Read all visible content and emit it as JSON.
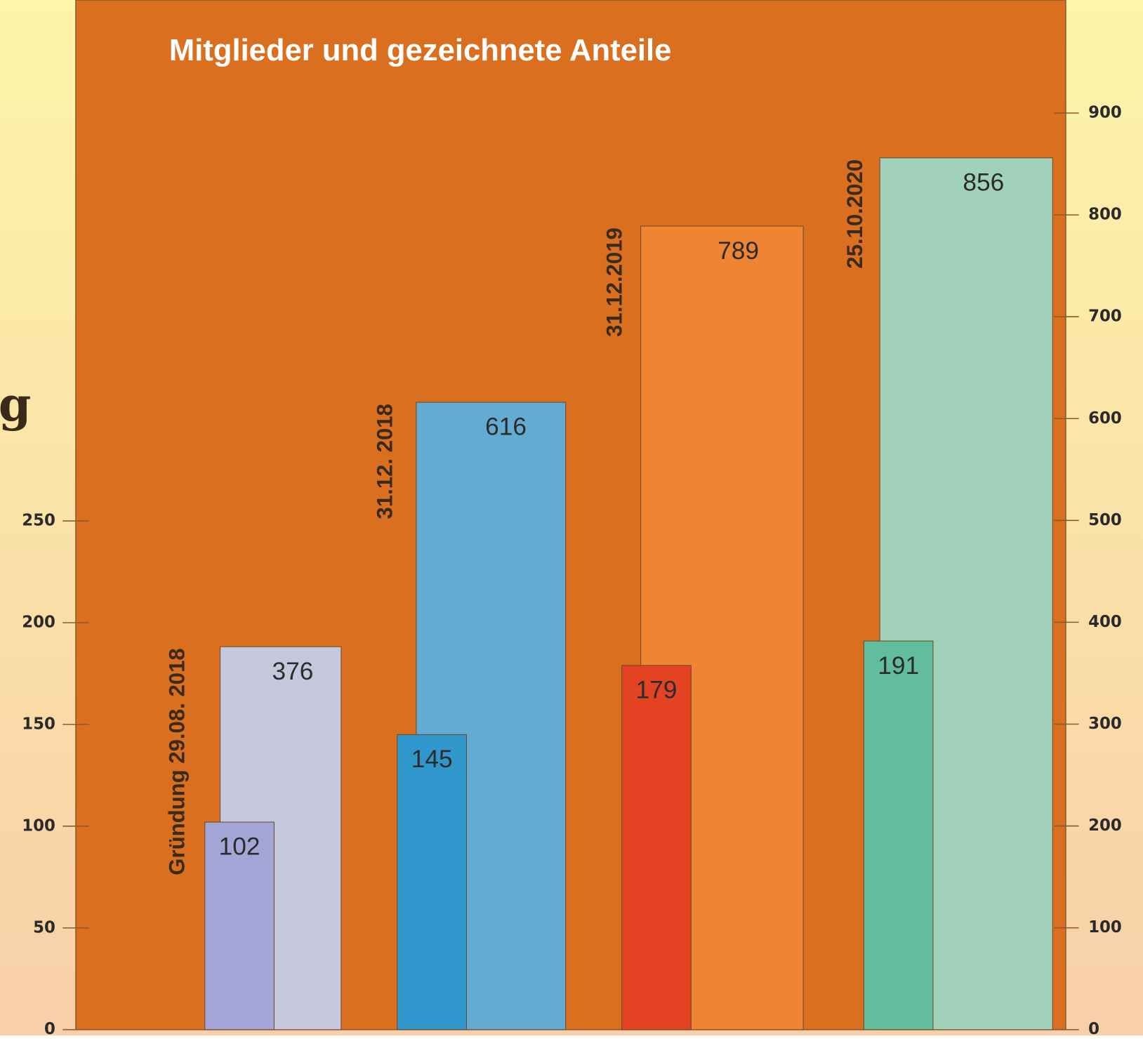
{
  "chart_data": {
    "type": "bar",
    "title": "Mitglieder und gezeichnete Anteile",
    "side_text": "g",
    "categories": [
      "Gründung  29.08. 2018",
      "31.12. 2018",
      "31.12.2019",
      "25.10.2020"
    ],
    "series": [
      {
        "axis": "y",
        "colors": [
          "#a3a5d6",
          "#2f97cc",
          "#e34322",
          "#62bc9e"
        ],
        "values": [
          102,
          145,
          179,
          191
        ]
      },
      {
        "axis": "y2",
        "colors": [
          "#c5c7dd",
          "#63abd0",
          "#ef8532",
          "#a1d1bb"
        ],
        "values": [
          376,
          616,
          789,
          856
        ]
      }
    ],
    "ylim": [
      0,
      506
    ],
    "yticks": [
      0,
      50,
      100,
      150,
      200,
      250
    ],
    "y2lim": [
      0,
      1011
    ],
    "y2ticks": [
      0,
      100,
      200,
      300,
      400,
      500,
      600,
      700,
      800,
      900
    ],
    "plot_color": "#d96f1f"
  }
}
